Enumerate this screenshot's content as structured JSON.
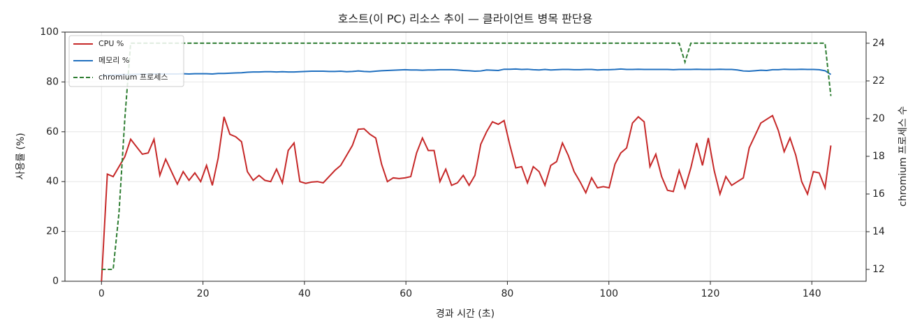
{
  "chart_data": {
    "type": "line",
    "title": "호스트(이 PC) 리소스 추이 — 클라이언트 병목 판단용",
    "x_label": "경과 시간 (초)",
    "y_label": "사용률 (%)",
    "y2_label": "chromium 프로세스 수",
    "x": [
      0,
      1.15,
      2.3,
      3.45,
      4.6,
      5.75,
      6.9,
      8.05,
      9.2,
      10.35,
      11.5,
      12.65,
      13.8,
      14.95,
      16.1,
      17.25,
      18.4,
      19.55,
      20.7,
      21.85,
      23,
      24.15,
      25.3,
      26.45,
      27.6,
      28.75,
      29.9,
      31.05,
      32.2,
      33.35,
      34.5,
      35.65,
      36.8,
      37.95,
      39.1,
      40.25,
      41.4,
      42.55,
      43.7,
      44.85,
      46,
      47.15,
      48.3,
      49.45,
      50.6,
      51.75,
      52.9,
      54.05,
      55.2,
      56.35,
      57.5,
      58.65,
      59.8,
      60.95,
      62.1,
      63.25,
      64.4,
      65.55,
      66.7,
      67.85,
      69,
      70.15,
      71.3,
      72.45,
      73.6,
      74.75,
      75.9,
      77.05,
      78.2,
      79.35,
      80.5,
      81.65,
      82.8,
      83.95,
      85.1,
      86.25,
      87.4,
      88.55,
      89.7,
      90.85,
      92,
      93.15,
      94.3,
      95.45,
      96.6,
      97.75,
      98.9,
      100.05,
      101.2,
      102.35,
      103.5,
      104.65,
      105.8,
      106.95,
      108.1,
      109.25,
      110.4,
      111.55,
      112.7,
      113.85,
      115,
      116.15,
      117.3,
      118.45,
      119.6,
      120.75,
      121.9,
      123.05,
      124.2,
      125.35,
      126.5,
      127.65,
      128.8,
      129.95,
      131.1,
      132.25,
      133.4,
      134.55,
      135.7,
      136.85,
      138,
      139.15,
      140.3,
      141.45,
      142.6,
      143.75
    ],
    "series": [
      {
        "name": "CPU %",
        "color": "#c62828",
        "values": [
          0,
          43,
          42,
          46,
          50,
          57,
          54,
          51,
          51.5,
          57,
          42.5,
          49,
          44,
          39,
          44,
          40.5,
          43.5,
          40,
          46.5,
          38.5,
          49.5,
          66,
          59,
          58,
          56,
          44,
          40.5,
          42.5,
          40.5,
          40,
          45,
          39.5,
          52.5,
          55.5,
          40,
          39.3,
          39.8,
          40,
          39.5,
          42,
          44.5,
          46.5,
          50.5,
          54.5,
          61,
          61.2,
          59,
          57.5,
          47,
          40,
          41.5,
          41.2,
          41.5,
          42,
          51.5,
          57.5,
          52.5,
          52.5,
          40,
          45,
          38.5,
          39.5,
          42.5,
          38.5,
          42.5,
          55,
          60,
          64,
          63,
          64.5,
          54.5,
          45.5,
          46,
          39.5,
          46,
          44,
          38.5,
          46.5,
          48,
          55.5,
          50.5,
          44,
          40,
          35.5,
          41.5,
          37.5,
          38,
          37.5,
          47,
          51.5,
          53.5,
          63.5,
          66,
          64,
          46,
          51,
          42,
          36.5,
          36,
          44.5,
          37.5,
          45.5,
          55.5,
          46.5,
          57.5,
          44.5,
          35,
          42,
          38.5,
          40,
          41.5,
          53.5,
          58.5,
          63.5,
          65,
          66.5,
          60.5,
          52,
          57.5,
          50.5,
          40,
          35,
          44,
          43.5,
          37.5,
          54.5
        ]
      },
      {
        "name": "메모리 %",
        "color": "#1f6fbf",
        "values": [
          82.6,
          82.7,
          82.8,
          82.9,
          83,
          83,
          83.1,
          83.1,
          83.1,
          83.2,
          83.2,
          83.2,
          83.2,
          83.2,
          83.3,
          83.2,
          83.3,
          83.3,
          83.3,
          83.2,
          83.4,
          83.4,
          83.5,
          83.6,
          83.7,
          83.9,
          84,
          84,
          84.1,
          84.1,
          84,
          84.1,
          84,
          84,
          84.1,
          84.2,
          84.3,
          84.3,
          84.3,
          84.2,
          84.2,
          84.3,
          84.1,
          84.2,
          84.4,
          84.2,
          84.1,
          84.3,
          84.5,
          84.6,
          84.7,
          84.8,
          84.9,
          84.8,
          84.8,
          84.7,
          84.8,
          84.8,
          84.9,
          84.9,
          84.9,
          84.8,
          84.6,
          84.5,
          84.3,
          84.4,
          84.8,
          84.7,
          84.6,
          85.1,
          85.1,
          85.2,
          85,
          85.1,
          84.9,
          84.8,
          85,
          84.8,
          84.9,
          85,
          85,
          84.9,
          84.9,
          85,
          85,
          84.8,
          84.9,
          84.9,
          85,
          85.2,
          85,
          85,
          85.1,
          85,
          85,
          85,
          85,
          85,
          84.9,
          85,
          85,
          85,
          85.1,
          85,
          85,
          85,
          85.1,
          85,
          85,
          84.8,
          84.4,
          84.3,
          84.5,
          84.7,
          84.6,
          84.9,
          84.9,
          85.1,
          85,
          85,
          85.1,
          85,
          85,
          84.9,
          84.5,
          83
        ]
      },
      {
        "name": "chromium 프로세스",
        "color": "#2e7d32",
        "axis": "y2",
        "linestyle": "dashed",
        "values": [
          12,
          12,
          12,
          15,
          20,
          24,
          24,
          24,
          24,
          24,
          24,
          24,
          24,
          24,
          24,
          24,
          24,
          24,
          24,
          24,
          24,
          24,
          24,
          24,
          24,
          24,
          24,
          24,
          24,
          24,
          24,
          24,
          24,
          24,
          24,
          24,
          24,
          24,
          24,
          24,
          24,
          24,
          24,
          24,
          24,
          24,
          24,
          24,
          24,
          24,
          24,
          24,
          24,
          24,
          24,
          24,
          24,
          24,
          24,
          24,
          24,
          24,
          24,
          24,
          24,
          24,
          24,
          24,
          24,
          24,
          24,
          24,
          24,
          24,
          24,
          24,
          24,
          24,
          24,
          24,
          24,
          24,
          24,
          24,
          24,
          24,
          24,
          24,
          24,
          24,
          24,
          24,
          24,
          24,
          24,
          24,
          24,
          24,
          24,
          24,
          23,
          24,
          24,
          24,
          24,
          24,
          24,
          24,
          24,
          24,
          24,
          24,
          24,
          24,
          24,
          24,
          24,
          24,
          24,
          24,
          24,
          24,
          24,
          24,
          24,
          21.2
        ]
      }
    ],
    "xlim": [
      -7.2,
      150.7
    ],
    "xticks": [
      0,
      20,
      40,
      60,
      80,
      100,
      120,
      140
    ],
    "ylim": [
      0,
      100
    ],
    "yticks": [
      0,
      20,
      40,
      60,
      80,
      100
    ],
    "y2lim": [
      11.37,
      24.59
    ],
    "y2ticks": [
      12,
      14,
      16,
      18,
      20,
      22,
      24
    ],
    "grid": true,
    "legend": "upper-left"
  }
}
